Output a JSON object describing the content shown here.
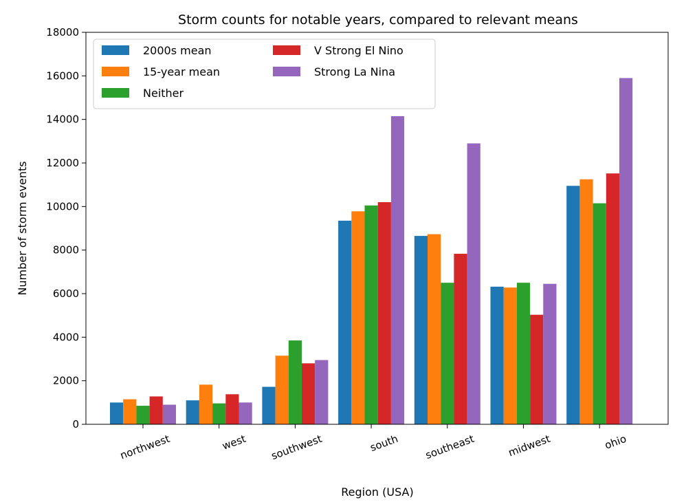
{
  "chart_data": {
    "type": "bar",
    "title": "Storm counts for notable years, compared to relevant means",
    "xlabel": "Region (USA)",
    "ylabel": "Number of storm events",
    "categories": [
      "northwest",
      "west",
      "southwest",
      "south",
      "southeast",
      "midwest",
      "ohio"
    ],
    "ylim": [
      0,
      18000
    ],
    "yticks": [
      0,
      2000,
      4000,
      6000,
      8000,
      10000,
      12000,
      14000,
      16000,
      18000
    ],
    "grid": false,
    "legend_position": "top-left",
    "legend_columns": 2,
    "series": [
      {
        "name": "2000s mean",
        "color": "#1f77b4",
        "values": [
          1000,
          1100,
          1720,
          9350,
          8650,
          6320,
          10950
        ]
      },
      {
        "name": "15-year mean",
        "color": "#ff7f0e",
        "values": [
          1150,
          1820,
          3150,
          9780,
          8730,
          6280,
          11250
        ]
      },
      {
        "name": "Neither",
        "color": "#2ca02c",
        "values": [
          850,
          960,
          3850,
          10050,
          6500,
          6500,
          10150
        ]
      },
      {
        "name": "V Strong El Nino",
        "color": "#d62728",
        "values": [
          1280,
          1380,
          2800,
          10200,
          7830,
          5030,
          11520
        ]
      },
      {
        "name": "Strong La Nina",
        "color": "#9467bd",
        "values": [
          900,
          1000,
          2950,
          14150,
          12900,
          6450,
          15900
        ]
      }
    ]
  }
}
